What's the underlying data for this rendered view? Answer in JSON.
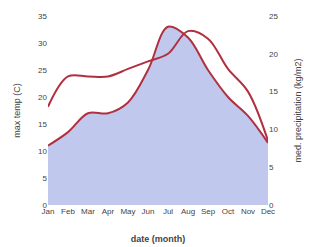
{
  "chart_data": {
    "type": "line",
    "categories": [
      "Jan",
      "Feb",
      "Mar",
      "Apr",
      "May",
      "Jun",
      "Jul",
      "Aug",
      "Sep",
      "Oct",
      "Nov",
      "Dec"
    ],
    "series": [
      {
        "type": "area",
        "color": "#c0c8ee",
        "values": [
          11,
          13.5,
          17,
          17,
          19,
          25,
          33,
          31,
          25,
          20,
          16.5,
          11.5
        ]
      },
      {
        "type": "line",
        "color": "#b03040",
        "values": [
          11,
          13.5,
          17,
          17,
          19,
          25,
          33,
          31,
          25,
          20,
          16.5,
          11.5
        ]
      },
      {
        "type": "line",
        "color": "#b03040",
        "axis": "y2",
        "values": [
          13,
          17,
          17,
          17,
          18,
          19,
          20,
          23,
          22,
          18,
          15,
          8.5
        ]
      }
    ],
    "x_label": "date (month)",
    "y_label": "max temp (C)",
    "y2_label": "med. precipitation (kg/m2)",
    "ylim": [
      0,
      35
    ],
    "yticks": [
      0,
      5,
      10,
      15,
      20,
      25,
      30,
      35
    ],
    "y2lim": [
      0,
      25
    ],
    "y2ticks": [
      0,
      5,
      10,
      15,
      20,
      25
    ],
    "grid": false
  }
}
